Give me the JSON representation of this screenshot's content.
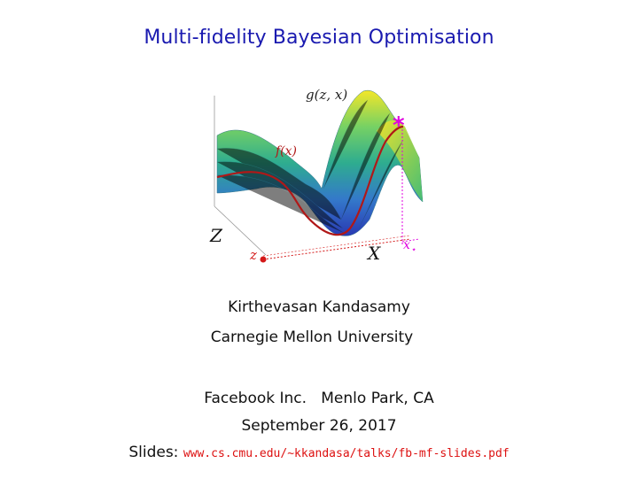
{
  "title": "Multi-fidelity Bayesian Optimisation",
  "figure": {
    "surface_label": "g(z, x)",
    "curve_label": "f(x)",
    "fidelity_axis": "Z",
    "domain_axis": "X",
    "fidelity_point": "z",
    "optimum_label": "x",
    "optimum_subscript": "⋆",
    "optimum_marker": "*",
    "colors": {
      "marker": "#e000e0",
      "curve": "#b01818",
      "axis_red": "#d41818"
    }
  },
  "author": "Kirthevasan Kandasamy",
  "affiliation": "Carnegie Mellon University",
  "venue": "Facebook Inc.   Menlo Park, CA",
  "date": "September 26, 2017",
  "slides": {
    "label": "Slides:",
    "url": "www.cs.cmu.edu/∼kkandasa/talks/fb-mf-slides.pdf"
  }
}
